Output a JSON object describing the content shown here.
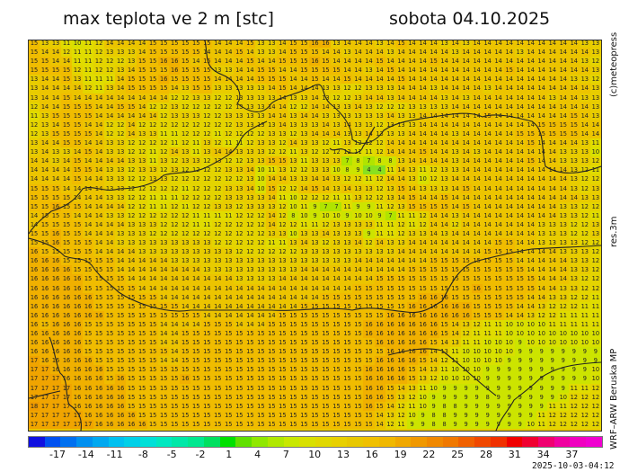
{
  "header": {
    "title": "max teplota ve 2 m [stc]",
    "date": "sobota 04.10.2025"
  },
  "side_labels": {
    "copyright": "(c)meteopress",
    "resolution": "res.3m",
    "model": "WRF–ARW  Beruska  MP"
  },
  "timestamp": "2025-10-03-04:12",
  "legend": {
    "ticks": [
      "-17",
      "-14",
      "-11",
      "-8",
      "-5",
      "-2",
      "1",
      "4",
      "7",
      "10",
      "13",
      "16",
      "19",
      "22",
      "25",
      "28",
      "31",
      "34",
      "37"
    ],
    "colors": [
      "#1010e0",
      "#0050f0",
      "#0070f0",
      "#0090f0",
      "#00a8f0",
      "#00c0f0",
      "#00d0e8",
      "#00e0d8",
      "#00e8c0",
      "#00e8a8",
      "#00e890",
      "#00e060",
      "#00e000",
      "#60e000",
      "#90e800",
      "#b0e800",
      "#c8e800",
      "#d8e000",
      "#e0d800",
      "#e8d000",
      "#e8c800",
      "#f0c000",
      "#f0b800",
      "#f0a800",
      "#f09800",
      "#f08800",
      "#f07800",
      "#f06000",
      "#f04800",
      "#f03000",
      "#f00000",
      "#f00030",
      "#f00070",
      "#f000a0",
      "#f000c0",
      "#f000d0"
    ]
  },
  "map": {
    "value_colors": {
      "4": "#88e020",
      "7": "#b0e400",
      "9": "#cce400",
      "10": "#d8e000",
      "11": "#e0dc00",
      "12": "#e4d400",
      "13": "#e8cc00",
      "14": "#ecc400",
      "15": "#f0bc00",
      "16": "#f0b000",
      "17": "#f0a400",
      "18": "#f09c00"
    },
    "rows": [
      "15 13 13 11 10 11 12 14 14 14 14 15 15 15 15 15 15 14 14 14 15 13 13 14 15 15 16 16 13 14 14 14 13 14 15 14 14 14 13 14 13 14 14 14 14 14 14 14 14 14 14 13 13",
      "15 14 14 12 11 11 12 13 13 13 14 15 15 15 15 15 14 14 14 15 14 13 13 14 15 15 15 14 14 13 14 14 14 13 14 14 14 14 14 13 14 14 14 14 14 13 14 14 14 14 14 14 13",
      "15 15 14 14 11 11 12 12 12 13 15 15 16 16 15 14 15 14 14 14 15 14 14 15 15 15 16 15 14 14 14 14 15 14 14 14 14 15 14 14 14 14 14 14 14 14 14 14 14 14 14 13 12",
      "15 15 15 15 12 11 12 12 13 14 15 15 15 16 15 15 15 13 13 14 14 15 15 14 14 15 15 15 15 14 14 13 14 15 14 14 14 14 14 14 14 14 14 14 15 14 14 14 14 14 14 14 13",
      "13 14 14 15 13 11 11 11 14 15 15 15 16 15 15 15 15 14 14 14 14 15 15 15 14 14 15 14 14 15 14 14 14 14 15 14 14 14 14 14 14 14 14 14 14 14 14 14 14 14 13 13 12",
      "13 14 14 14 14 12 11 13 14 15 15 15 15 14 13 15 15 13 13 13 13 13 14 15 14 14 14 13 13 12 12 13 13 13 14 14 14 13 14 14 14 14 13 14 14 14 14 14 14 14 14 14 13",
      "13 14 14 15 14 14 14 14 14 14 14 14 14 12 12 13 13 12 12 13 13 13 13 14 13 13 14 13 12 12 13 14 14 13 14 14 14 14 13 14 13 14 14 14 14 14 14 14 13 14 14 13 13",
      "12 14 14 15 15 15 14 14 15 15 14 12 12 13 12 12 12 12 12 13 13 13 14 14 12 12 14 14 13 13 14 13 12 12 12 13 13 13 13 14 14 14 14 14 14 14 14 14 14 14 14 14 13",
      "11 13 15 15 15 15 14 14 14 14 14 14 12 13 13 13 12 12 13 13 13 13 14 14 13 14 14 13 13 13 13 13 13 14 13 13 14 14 14 14 14 14 15 14 14 14 14 14 14 14 15 14 13",
      "12 13 14 15 15 14 14 12 12 14 12 12 12 12 12 12 12 12 12 13 13 13 13 14 13 13 13 14 13 14 13 13 12 13 13 13 14 14 14 14 14 14 14 14 14 14 14 15 15 15 15 14 14",
      "12 13 15 15 15 15 14 12 12 14 13 13 11 11 12 12 12 11 12 12 12 12 13 13 12 13 14 14 14 13 13 14 13 13 13 14 14 14 14 13 14 14 14 14 14 15 15 15 15 15 15 14 14",
      "13 14 14 15 15 14 14 13 13 12 12 12 12 11 12 11 13 12 11 11 12 13 13 12 14 13 13 12 11 13 12 12 12 14 14 14 14 14 14 14 14 14 14 14 14 14 15 14 14 14 14 13 11",
      "13 14 13 13 14 15 14 13 13 12 12 11 12 14 13 11 13 14 14 13 13 13 12 12 11 13 12 12 12 12 11 11 12 14 14 14 15 14 14 13 14 13 14 14 14 14 14 14 14 13 13 13 10",
      "14 14 13 14 15 14 14 14 14 13 13 11 13 12 13 13 12 13 12 12 13 13 15 15 13 11 13 13 13 7 8 7 8 8 13 14 14 14 14 13 14 14 14 14 14 14 15 14 14 13 13 13 12",
      "14 14 14 14 15 15 14 13 13 12 13 13 12 13 12 12 12 12 13 13 14 10 11 13 12 12 13 13 10 8 9 4 4 11 14 13 11 12 13 13 14 14 14 14 14 14 14 14 14 14 13 12 11",
      "14 14 14 14 15 14 14 13 13 12 12 13 13 12 12 12 12 12 12 12 13 10 14 14 13 13 14 14 13 12 12 11 12 14 14 13 10 12 13 14 14 14 14 14 14 14 14 14 14 14 13 12 12",
      "15 15 15 14 14 14 14 13 13 12 12 12 12 12 11 12 12 12 13 13 14 10 15 12 12 14 15 14 13 14 13 13 12 13 15 14 13 13 13 14 15 14 14 14 14 14 14 14 14 14 13 12 13",
      "15 15 15 15 14 14 14 13 13 12 12 11 11 11 12 12 12 12 13 13 13 13 14 11 10 12 12 12 11 11 13 12 12 13 14 15 14 14 15 14 14 14 14 14 14 14 14 14 14 14 14 13 13",
      "15 15 16 15 15 14 14 14 14 12 12 11 11 12 11 12 12 13 13 12 13 13 13 12 10 11 9 7 7 11 9 9 11 12 13 15 15 15 15 14 15 14 14 14 14 14 14 14 14 13 13 12 12",
      "14 15 15 15 14 14 14 13 13 12 12 12 12 12 12 11 11 11 11 12 12 12 14 12 8 10 9 10 10 9 10 10 9 7 11 11 12 14 14 13 14 14 14 14 14 14 14 14 14 13 13 12 11",
      "14 15 15 15 15 14 14 14 14 13 13 13 12 12 12 11 11 12 12 12 12 12 14 12 12 11 11 12 13 13 13 13 11 11 12 11 12 14 14 12 14 14 14 14 14 14 14 13 13 13 12 12 13",
      "15 15 16 15 15 14 14 14 13 13 13 12 12 12 12 12 12 12 12 12 12 12 13 13 10 13 13 14 13 13 13 9 11 11 12 13 13 14 13 14 14 14 14 14 14 14 14 13 13 13 12 12 13",
      "15 15 16 15 15 15 14 14 13 13 13 13 13 13 13 13 13 12 12 12 12 12 11 11 13 14 13 12 13 13 14 12 14 13 13 14 14 14 14 14 14 14 14 15 15 14 14 13 13 13 13 12 12",
      "16 15 15 15 15 15 14 14 14 14 13 13 13 13 13 13 13 13 13 12 12 12 12 12 12 13 13 13 13 13 13 13 13 13 14 14 14 14 14 14 14 14 15 15 15 14 14 14 14 13 13 13 12",
      "16 16 16 15 15 15 15 15 14 14 14 14 14 13 13 13 13 13 13 13 13 13 13 13 13 13 13 13 13 13 14 14 14 14 14 14 14 15 15 15 15 15 15 15 15 14 14 14 14 14 13 13 12",
      "16 16 16 16 15 15 15 15 14 14 14 14 14 14 14 14 13 13 13 13 13 13 13 13 13 14 14 14 14 14 14 14 14 14 14 15 15 15 15 15 15 15 15 15 15 15 14 14 14 14 13 13 12",
      "16 16 16 16 16 15 15 15 15 14 14 14 14 14 14 14 14 14 14 13 13 13 13 14 14 14 14 14 14 14 14 14 15 15 15 15 15 15 15 15 15 15 15 15 15 15 15 14 14 14 13 12 12",
      "16 16 16 16 16 15 15 15 15 15 14 14 14 14 14 14 14 14 14 14 14 14 14 14 14 14 14 14 14 14 15 15 15 15 15 15 15 15 15 15 15 16 15 15 15 15 15 14 14 13 13 12 12",
      "16 16 16 16 16 16 15 15 15 15 15 15 14 14 14 14 14 14 14 14 14 14 14 14 14 14 14 15 15 15 15 15 15 15 15 15 16 16 16 15 15 15 15 15 15 15 14 14 13 13 12 12 11",
      "16 16 16 16 16 16 15 15 15 15 15 15 15 15 14 14 14 14 14 14 14 14 14 14 14 15 15 15 15 15 15 15 15 15 15 16 16 16 16 16 16 15 15 15 15 14 14 13 12 12 12 11 11",
      "16 16 16 16 16 16 16 15 15 15 15 15 15 15 15 15 14 14 14 14 14 14 14 15 15 15 15 15 15 15 15 15 15 16 16 16 16 16 16 16 16 15 15 15 14 14 13 12 12 11 11 11 11",
      "16 15 16 16 16 15 15 15 15 15 15 15 14 14 14 14 15 15 15 14 14 14 15 15 15 15 15 15 15 15 15 16 16 16 16 16 16 16 15 14 13 12 11 11 10 10 10 10 11 11 11 11 11",
      "16 16 16 16 16 15 15 15 15 15 15 15 14 14 15 15 15 15 15 15 15 15 15 15 15 15 15 15 15 15 15 16 16 16 16 16 16 16 15 14 12 11 11 11 10 10 10 10 10 10 10 10 10",
      "16 16 16 16 16 15 15 15 15 15 15 15 14 14 15 15 15 15 15 15 15 15 15 15 15 15 15 15 15 15 15 15 16 16 16 16 16 15 14 13 11 11 10 10 10 9 10 10 10 10 10 10 10",
      "16 16 16 16 16 15 15 15 15 15 15 15 15 14 15 15 15 15 15 15 15 15 15 15 15 15 15 15 15 15 15 15 15 16 16 16 16 14 13 11 10 10 10 10 10 9 9 9 9 9 9 9 9",
      "17 16 16 16 16 16 15 15 15 15 15 15 14 14 15 15 15 15 15 15 15 15 15 15 15 15 15 15 15 15 15 15 16 16 16 16 15 14 12 11 10 10 10 10 9 9 9 9 9 9 9 9 9",
      "17 17 16 16 16 16 16 15 15 15 15 15 15 15 15 15 15 15 15 15 15 15 15 15 15 15 15 15 15 15 15 16 16 16 16 15 14 13 11 10 10 10 9 9 9 9 9 9 9 9 9 9 10",
      "17 17 17 16 16 16 16 15 16 15 15 15 15 15 16 15 15 15 15 15 15 15 15 15 15 15 15 15 15 15 15 16 16 16 16 15 13 12 10 10 10 10 9 9 9 9 9 9 9 9 9 9 10",
      "17 17 17 17 16 16 16 16 16 15 15 15 15 15 15 15 15 15 15 15 15 15 15 15 15 15 15 15 15 15 15 16 16 15 14 13 11 10 9 9 9 9 9 9 9 9 9 9 9 9 11 11 12",
      "17 17 17 17 16 16 16 16 16 15 15 15 15 15 15 15 15 15 15 15 15 15 15 15 15 15 15 15 15 15 15 16 16 15 13 12 10 9 9 9 9 9 8 9 9 9 9 9 9 10 12 12 12",
      "18 17 17 17 16 16 16 16 16 15 15 15 15 15 15 15 15 15 15 15 15 15 15 15 15 15 15 15 15 15 15 16 15 14 12 11 10 9 8 8 9 9 9 9 9 9 9 9 11 11 12 12 12",
      "17 17 17 17 17 16 16 16 16 16 15 15 15 15 15 15 15 15 15 15 15 15 15 15 15 15 15 15 15 15 15 15 14 13 12 10 9 8 8 9 9 9 9 9 9 9 9 11 12 12 12 12 12",
      "17 17 17 17 17 17 16 16 16 16 16 15 15 15 15 15 15 15 15 15 15 15 15 15 15 15 15 15 15 15 15 15 14 12 11 9 9 8 8 9 9 9 9 9 9 9 10 11 12 12 12 12 12"
    ]
  }
}
